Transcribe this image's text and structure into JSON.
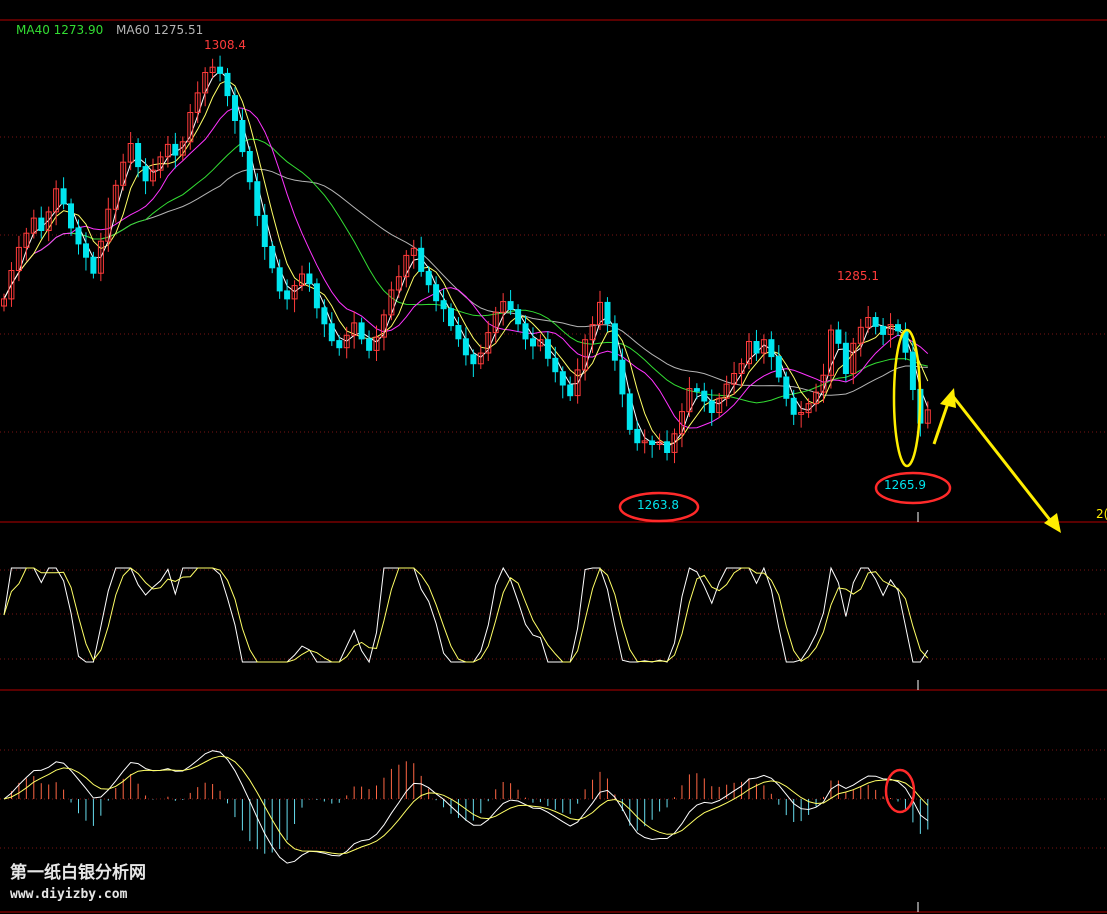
{
  "colors": {
    "background": "#000000",
    "border": "#b40000",
    "grid": "#7a1414",
    "up_candle": "#ff3b3b",
    "down_candle": "#00e5ee",
    "ma_fast": "#ffffff",
    "ma_mid": "#ffff66",
    "ma_slow": "#ff33ff",
    "ma40": "#33dd33",
    "ma60": "#b4b4b4",
    "annotation_yellow": "#ffee00",
    "annotation_red": "#ff2a2a",
    "macd_up": "#ff6644",
    "macd_down": "#66ddee"
  },
  "legend": {
    "ma40": "MA40 1273.90",
    "ma60": "MA60 1275.51"
  },
  "annotations": {
    "high_label": "1308.4",
    "mid_high_label": "1285.1",
    "low1_label": "1263.8",
    "low2_label": "1265.9",
    "right_edge_label": "2("
  },
  "watermark": {
    "line1": "第一纸白银分析网",
    "line2": "www.diyizby.com"
  },
  "chart_data": {
    "type": "candlestick",
    "instrument": "silver",
    "visible_price_marks": {
      "high": 1308.4,
      "secondary_high": 1285.1,
      "low_1": 1263.8,
      "low_2": 1265.9
    },
    "moving_averages": [
      {
        "name": "MA40",
        "value": 1273.9
      },
      {
        "name": "MA60",
        "value": 1275.51
      }
    ],
    "indicator_panels": [
      "oscillator",
      "macd"
    ],
    "price_series_close": [
      1281.4,
      1284.6,
      1287.2,
      1288.8,
      1290.5,
      1289.1,
      1291.2,
      1293.8,
      1292.1,
      1289.4,
      1287.6,
      1286.1,
      1284.3,
      1287.9,
      1291.5,
      1294.2,
      1296.8,
      1298.9,
      1296.3,
      1294.7,
      1295.9,
      1297.4,
      1298.8,
      1297.6,
      1299.1,
      1302.4,
      1304.6,
      1306.9,
      1307.5,
      1306.8,
      1304.3,
      1301.5,
      1298.0,
      1294.6,
      1290.8,
      1287.3,
      1284.9,
      1282.3,
      1281.4,
      1282.9,
      1284.2,
      1283.1,
      1280.4,
      1278.6,
      1276.7,
      1275.9,
      1277.3,
      1278.7,
      1276.9,
      1275.6,
      1277.1,
      1279.6,
      1282.4,
      1283.9,
      1286.3,
      1287.1,
      1284.5,
      1283.0,
      1281.2,
      1280.3,
      1278.4,
      1276.9,
      1275.1,
      1274.1,
      1275.3,
      1277.6,
      1279.9,
      1281.1,
      1280.2,
      1278.6,
      1276.9,
      1276.1,
      1276.8,
      1274.7,
      1273.2,
      1271.7,
      1270.5,
      1273.4,
      1276.8,
      1278.5,
      1281.0,
      1278.6,
      1274.5,
      1270.7,
      1266.7,
      1265.2,
      1265.4,
      1265.0,
      1265.3,
      1264.1,
      1266.2,
      1268.7,
      1271.3,
      1271.0,
      1269.9,
      1268.6,
      1270.2,
      1271.8,
      1273.0,
      1274.1,
      1276.6,
      1275.3,
      1276.8,
      1274.9,
      1272.6,
      1270.2,
      1268.4,
      1268.6,
      1269.6,
      1270.9,
      1272.8,
      1277.9,
      1276.4,
      1273.0,
      1276.4,
      1278.2,
      1279.3,
      1278.3,
      1277.4,
      1278.5,
      1277.8,
      1275.4,
      1271.2,
      1267.4,
      1268.9
    ]
  }
}
